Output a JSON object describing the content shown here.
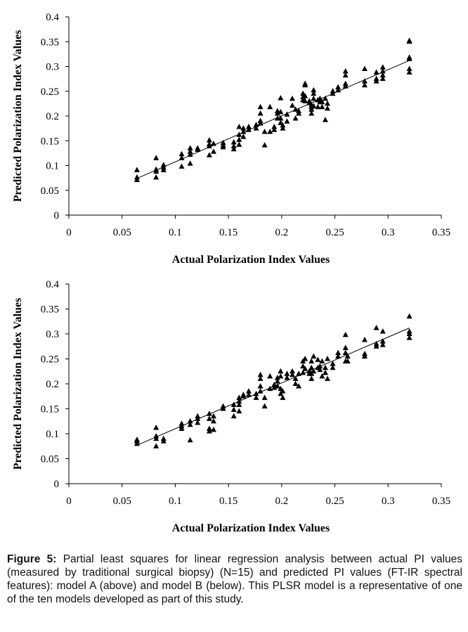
{
  "chart_data": [
    {
      "type": "scatter",
      "xlabel": "Actual Polarization Index Values",
      "ylabel": "Predicted Polarization Index Values",
      "xlim": [
        0,
        0.35
      ],
      "ylim": [
        0,
        0.4
      ],
      "xticks": [
        "0",
        "0.05",
        "0.1",
        "0.15",
        "0.2",
        "0.25",
        "0.3",
        "0.35"
      ],
      "yticks": [
        "0",
        "0.05",
        "0.1",
        "0.15",
        "0.2",
        "0.25",
        "0.3",
        "0.35",
        "0.4"
      ],
      "grid": false,
      "marker": "triangle",
      "trendline": {
        "x": [
          0.064,
          0.32
        ],
        "y": [
          0.074,
          0.312
        ]
      },
      "series": [
        {
          "points": [
            [
              0.064,
              0.091
            ],
            [
              0.064,
              0.076
            ],
            [
              0.064,
              0.071
            ],
            [
              0.082,
              0.115
            ],
            [
              0.082,
              0.092
            ],
            [
              0.082,
              0.088
            ],
            [
              0.082,
              0.076
            ],
            [
              0.089,
              0.101
            ],
            [
              0.089,
              0.096
            ],
            [
              0.089,
              0.091
            ],
            [
              0.106,
              0.123
            ],
            [
              0.106,
              0.115
            ],
            [
              0.106,
              0.098
            ],
            [
              0.114,
              0.135
            ],
            [
              0.114,
              0.128
            ],
            [
              0.114,
              0.122
            ],
            [
              0.114,
              0.104
            ],
            [
              0.121,
              0.135
            ],
            [
              0.121,
              0.132
            ],
            [
              0.132,
              0.151
            ],
            [
              0.132,
              0.143
            ],
            [
              0.132,
              0.139
            ],
            [
              0.132,
              0.121
            ],
            [
              0.136,
              0.144
            ],
            [
              0.136,
              0.128
            ],
            [
              0.145,
              0.146
            ],
            [
              0.145,
              0.141
            ],
            [
              0.145,
              0.137
            ],
            [
              0.155,
              0.147
            ],
            [
              0.155,
              0.139
            ],
            [
              0.155,
              0.133
            ],
            [
              0.16,
              0.178
            ],
            [
              0.16,
              0.162
            ],
            [
              0.16,
              0.152
            ],
            [
              0.16,
              0.142
            ],
            [
              0.164,
              0.175
            ],
            [
              0.164,
              0.168
            ],
            [
              0.164,
              0.158
            ],
            [
              0.169,
              0.178
            ],
            [
              0.169,
              0.172
            ],
            [
              0.176,
              0.182
            ],
            [
              0.176,
              0.175
            ],
            [
              0.18,
              0.218
            ],
            [
              0.18,
              0.205
            ],
            [
              0.18,
              0.19
            ],
            [
              0.18,
              0.185
            ],
            [
              0.184,
              0.168
            ],
            [
              0.184,
              0.141
            ],
            [
              0.189,
              0.218
            ],
            [
              0.189,
              0.168
            ],
            [
              0.193,
              0.178
            ],
            [
              0.193,
              0.172
            ],
            [
              0.196,
              0.21
            ],
            [
              0.196,
              0.205
            ],
            [
              0.196,
              0.195
            ],
            [
              0.199,
              0.236
            ],
            [
              0.199,
              0.208
            ],
            [
              0.199,
              0.195
            ],
            [
              0.199,
              0.186
            ],
            [
              0.201,
              0.181
            ],
            [
              0.201,
              0.175
            ],
            [
              0.205,
              0.203
            ],
            [
              0.205,
              0.189
            ],
            [
              0.21,
              0.235
            ],
            [
              0.21,
              0.221
            ],
            [
              0.213,
              0.213
            ],
            [
              0.213,
              0.195
            ],
            [
              0.216,
              0.21
            ],
            [
              0.216,
              0.205
            ],
            [
              0.22,
              0.245
            ],
            [
              0.22,
              0.238
            ],
            [
              0.22,
              0.232
            ],
            [
              0.222,
              0.265
            ],
            [
              0.222,
              0.262
            ],
            [
              0.222,
              0.24
            ],
            [
              0.222,
              0.23
            ],
            [
              0.226,
              0.23
            ],
            [
              0.226,
              0.226
            ],
            [
              0.228,
              0.222
            ],
            [
              0.228,
              0.218
            ],
            [
              0.228,
              0.213
            ],
            [
              0.228,
              0.205
            ],
            [
              0.23,
              0.252
            ],
            [
              0.23,
              0.245
            ],
            [
              0.23,
              0.235
            ],
            [
              0.23,
              0.22
            ],
            [
              0.234,
              0.232
            ],
            [
              0.234,
              0.218
            ],
            [
              0.236,
              0.235
            ],
            [
              0.236,
              0.228
            ],
            [
              0.238,
              0.228
            ],
            [
              0.238,
              0.218
            ],
            [
              0.241,
              0.235
            ],
            [
              0.241,
              0.192
            ],
            [
              0.243,
              0.225
            ],
            [
              0.243,
              0.215
            ],
            [
              0.248,
              0.25
            ],
            [
              0.248,
              0.245
            ],
            [
              0.253,
              0.258
            ],
            [
              0.253,
              0.252
            ],
            [
              0.26,
              0.29
            ],
            [
              0.26,
              0.282
            ],
            [
              0.26,
              0.265
            ],
            [
              0.26,
              0.26
            ],
            [
              0.278,
              0.295
            ],
            [
              0.278,
              0.27
            ],
            [
              0.278,
              0.262
            ],
            [
              0.289,
              0.288
            ],
            [
              0.289,
              0.275
            ],
            [
              0.289,
              0.27
            ],
            [
              0.295,
              0.298
            ],
            [
              0.295,
              0.29
            ],
            [
              0.295,
              0.282
            ],
            [
              0.295,
              0.275
            ],
            [
              0.32,
              0.352
            ],
            [
              0.32,
              0.35
            ],
            [
              0.32,
              0.318
            ],
            [
              0.32,
              0.315
            ],
            [
              0.32,
              0.295
            ],
            [
              0.32,
              0.288
            ]
          ]
        }
      ]
    },
    {
      "type": "scatter",
      "xlabel": "Actual Polarization Index Values",
      "ylabel": "Predicted Polarization Index Values",
      "xlim": [
        0,
        0.35
      ],
      "ylim": [
        0,
        0.4
      ],
      "xticks": [
        "0",
        "0.05",
        "0.1",
        "0.15",
        "0.2",
        "0.25",
        "0.3",
        "0.35"
      ],
      "yticks": [
        "0",
        "0.05",
        "0.1",
        "0.15",
        "0.2",
        "0.25",
        "0.3",
        "0.35",
        "0.4"
      ],
      "grid": false,
      "marker": "triangle",
      "trendline": {
        "x": [
          0.064,
          0.32
        ],
        "y": [
          0.077,
          0.312
        ]
      },
      "series": [
        {
          "points": [
            [
              0.064,
              0.088
            ],
            [
              0.064,
              0.085
            ],
            [
              0.064,
              0.08
            ],
            [
              0.082,
              0.112
            ],
            [
              0.082,
              0.095
            ],
            [
              0.082,
              0.09
            ],
            [
              0.082,
              0.075
            ],
            [
              0.089,
              0.09
            ],
            [
              0.089,
              0.085
            ],
            [
              0.106,
              0.12
            ],
            [
              0.106,
              0.115
            ],
            [
              0.106,
              0.11
            ],
            [
              0.114,
              0.125
            ],
            [
              0.114,
              0.118
            ],
            [
              0.114,
              0.087
            ],
            [
              0.121,
              0.135
            ],
            [
              0.121,
              0.13
            ],
            [
              0.121,
              0.122
            ],
            [
              0.132,
              0.14
            ],
            [
              0.132,
              0.13
            ],
            [
              0.132,
              0.11
            ],
            [
              0.132,
              0.105
            ],
            [
              0.136,
              0.135
            ],
            [
              0.136,
              0.125
            ],
            [
              0.136,
              0.108
            ],
            [
              0.145,
              0.155
            ],
            [
              0.145,
              0.15
            ],
            [
              0.155,
              0.158
            ],
            [
              0.155,
              0.148
            ],
            [
              0.155,
              0.135
            ],
            [
              0.16,
              0.172
            ],
            [
              0.16,
              0.165
            ],
            [
              0.16,
              0.158
            ],
            [
              0.16,
              0.145
            ],
            [
              0.164,
              0.178
            ],
            [
              0.164,
              0.175
            ],
            [
              0.169,
              0.185
            ],
            [
              0.169,
              0.178
            ],
            [
              0.176,
              0.18
            ],
            [
              0.176,
              0.172
            ],
            [
              0.18,
              0.218
            ],
            [
              0.18,
              0.21
            ],
            [
              0.18,
              0.195
            ],
            [
              0.18,
              0.185
            ],
            [
              0.184,
              0.172
            ],
            [
              0.184,
              0.155
            ],
            [
              0.189,
              0.215
            ],
            [
              0.189,
              0.19
            ],
            [
              0.193,
              0.198
            ],
            [
              0.193,
              0.192
            ],
            [
              0.196,
              0.212
            ],
            [
              0.196,
              0.205
            ],
            [
              0.196,
              0.195
            ],
            [
              0.199,
              0.225
            ],
            [
              0.199,
              0.215
            ],
            [
              0.199,
              0.19
            ],
            [
              0.199,
              0.18
            ],
            [
              0.201,
              0.185
            ],
            [
              0.201,
              0.172
            ],
            [
              0.205,
              0.22
            ],
            [
              0.205,
              0.212
            ],
            [
              0.21,
              0.225
            ],
            [
              0.21,
              0.218
            ],
            [
              0.213,
              0.21
            ],
            [
              0.213,
              0.2
            ],
            [
              0.216,
              0.22
            ],
            [
              0.216,
              0.195
            ],
            [
              0.22,
              0.245
            ],
            [
              0.22,
              0.235
            ],
            [
              0.22,
              0.222
            ],
            [
              0.222,
              0.25
            ],
            [
              0.222,
              0.23
            ],
            [
              0.226,
              0.225
            ],
            [
              0.226,
              0.22
            ],
            [
              0.228,
              0.245
            ],
            [
              0.228,
              0.232
            ],
            [
              0.228,
              0.22
            ],
            [
              0.228,
              0.21
            ],
            [
              0.23,
              0.255
            ],
            [
              0.23,
              0.225
            ],
            [
              0.234,
              0.248
            ],
            [
              0.234,
              0.232
            ],
            [
              0.236,
              0.235
            ],
            [
              0.236,
              0.228
            ],
            [
              0.238,
              0.245
            ],
            [
              0.238,
              0.215
            ],
            [
              0.241,
              0.232
            ],
            [
              0.241,
              0.222
            ],
            [
              0.243,
              0.25
            ],
            [
              0.243,
              0.21
            ],
            [
              0.248,
              0.24
            ],
            [
              0.248,
              0.232
            ],
            [
              0.253,
              0.262
            ],
            [
              0.253,
              0.255
            ],
            [
              0.26,
              0.298
            ],
            [
              0.26,
              0.272
            ],
            [
              0.26,
              0.262
            ],
            [
              0.26,
              0.245
            ],
            [
              0.262,
              0.255
            ],
            [
              0.262,
              0.245
            ],
            [
              0.278,
              0.288
            ],
            [
              0.278,
              0.26
            ],
            [
              0.278,
              0.255
            ],
            [
              0.289,
              0.312
            ],
            [
              0.289,
              0.28
            ],
            [
              0.289,
              0.275
            ],
            [
              0.295,
              0.305
            ],
            [
              0.295,
              0.285
            ],
            [
              0.295,
              0.278
            ],
            [
              0.32,
              0.335
            ],
            [
              0.32,
              0.305
            ],
            [
              0.32,
              0.3
            ],
            [
              0.32,
              0.292
            ]
          ]
        }
      ]
    }
  ],
  "caption": {
    "label": "Figure 5:",
    "text": " Partial least squares for linear regression analysis between actual PI values (measured by traditional surgical biopsy) (N=15) and predicted PI values (FT-IR spectral features): model A (above) and model B (below). This PLSR model is a representative of one of the ten models developed as part of this study."
  }
}
